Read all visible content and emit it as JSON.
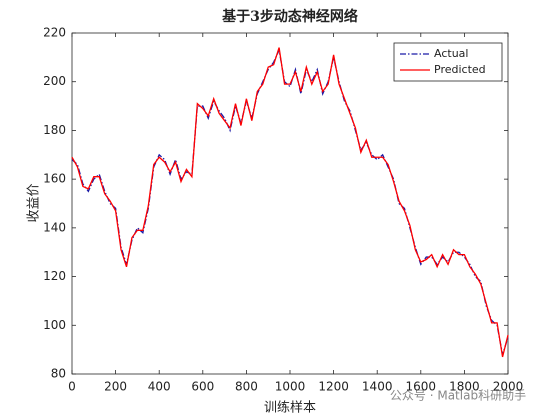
{
  "chart_data": {
    "type": "line",
    "title": "基于3步动态神经网络",
    "xlabel": "训练样本",
    "ylabel": "收益价",
    "x": [
      0,
      25,
      50,
      75,
      100,
      125,
      150,
      175,
      200,
      225,
      250,
      275,
      300,
      325,
      350,
      375,
      400,
      425,
      450,
      475,
      500,
      525,
      550,
      575,
      600,
      625,
      650,
      675,
      700,
      725,
      750,
      775,
      800,
      825,
      850,
      875,
      900,
      925,
      950,
      975,
      1000,
      1025,
      1050,
      1075,
      1100,
      1125,
      1150,
      1175,
      1200,
      1225,
      1250,
      1275,
      1300,
      1325,
      1350,
      1375,
      1400,
      1425,
      1450,
      1475,
      1500,
      1525,
      1550,
      1575,
      1600,
      1625,
      1650,
      1675,
      1700,
      1725,
      1750,
      1775,
      1800,
      1825,
      1850,
      1875,
      1900,
      1925,
      1950,
      1975,
      2000
    ],
    "series": [
      {
        "name": "Actual",
        "color": "#1a1aa6",
        "dash": "dashdot",
        "values": [
          168,
          166,
          158,
          155,
          160,
          162,
          155,
          150,
          148,
          132,
          125,
          135,
          140,
          138,
          148,
          165,
          170,
          168,
          162,
          168,
          160,
          163,
          162,
          190,
          190,
          185,
          192,
          188,
          185,
          180,
          190,
          183,
          192,
          185,
          195,
          200,
          205,
          208,
          213,
          200,
          198,
          205,
          195,
          205,
          200,
          205,
          195,
          200,
          210,
          200,
          192,
          188,
          180,
          172,
          175,
          170,
          168,
          170,
          165,
          160,
          150,
          148,
          140,
          132,
          125,
          128,
          128,
          125,
          128,
          126,
          130,
          130,
          128,
          125,
          120,
          118,
          108,
          102,
          100,
          88,
          95
        ]
      },
      {
        "name": "Predicted",
        "color": "#ff0000",
        "dash": "solid",
        "values": [
          169,
          165,
          157,
          156,
          161,
          161,
          154,
          151,
          147,
          131,
          124,
          136,
          139,
          139,
          149,
          166,
          169,
          167,
          163,
          167,
          159,
          164,
          161,
          191,
          189,
          186,
          193,
          187,
          184,
          181,
          191,
          182,
          193,
          184,
          196,
          199,
          206,
          207,
          214,
          199,
          199,
          204,
          196,
          206,
          199,
          204,
          196,
          199,
          211,
          199,
          193,
          187,
          181,
          171,
          176,
          169,
          169,
          169,
          166,
          159,
          151,
          147,
          141,
          131,
          126,
          127,
          129,
          124,
          129,
          125,
          131,
          129,
          129,
          124,
          121,
          117,
          109,
          101,
          101,
          87,
          96
        ]
      }
    ],
    "xlim": [
      0,
      2000
    ],
    "xticks": [
      0,
      200,
      400,
      600,
      800,
      1000,
      1200,
      1400,
      1600,
      1800,
      2000
    ],
    "ylim": [
      80,
      220
    ],
    "yticks": [
      80,
      100,
      120,
      140,
      160,
      180,
      200,
      220
    ],
    "legend": "upper right",
    "watermark": "公众号 · Matlab科研助手"
  }
}
